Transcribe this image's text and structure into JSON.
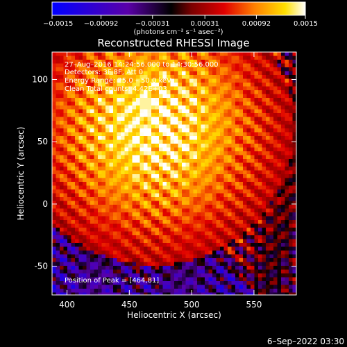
{
  "chart_data": {
    "type": "heatmap",
    "title": "Reconstructed RHESSI Image",
    "xlabel": "Heliocentric X (arcsec)",
    "ylabel": "Heliocentric Y (arcsec)",
    "xlim": [
      388,
      584
    ],
    "ylim": [
      -73,
      122
    ],
    "x_ticks": [
      400,
      450,
      500,
      550
    ],
    "y_ticks": [
      -50,
      0,
      50,
      100
    ],
    "colorbar": {
      "min": -0.0015,
      "max": 0.0015,
      "ticks": [
        -0.0015,
        -0.00092,
        -0.00031,
        0.00031,
        0.00092,
        0.0015
      ],
      "tick_labels": [
        "−0.0015",
        "−0.00092",
        "−0.00031",
        "0.00031",
        "0.00092",
        "0.0015"
      ],
      "units_label": "(photons cm⁻² s⁻¹ asec⁻²)",
      "palette": [
        "#0000ff",
        "#5a00a8",
        "#000000",
        "#7a0000",
        "#e00000",
        "#ff8000",
        "#ffe000",
        "#ffffff"
      ]
    },
    "annotations": {
      "time_range": "27–Aug–2016 14:24:56.000 to 14:30:56.000",
      "detectors": "Detectors: 3F 8F, Att 0",
      "energy_range": "Energy Range: 25.0 – 50.0 keV",
      "clean": "Clean    Total counts: 4.42E+03",
      "peak": "Position of Peak = [464,81]"
    },
    "peak": {
      "x": 464,
      "y": 81
    },
    "timestamp": "6–Sep–2022 03:30"
  }
}
